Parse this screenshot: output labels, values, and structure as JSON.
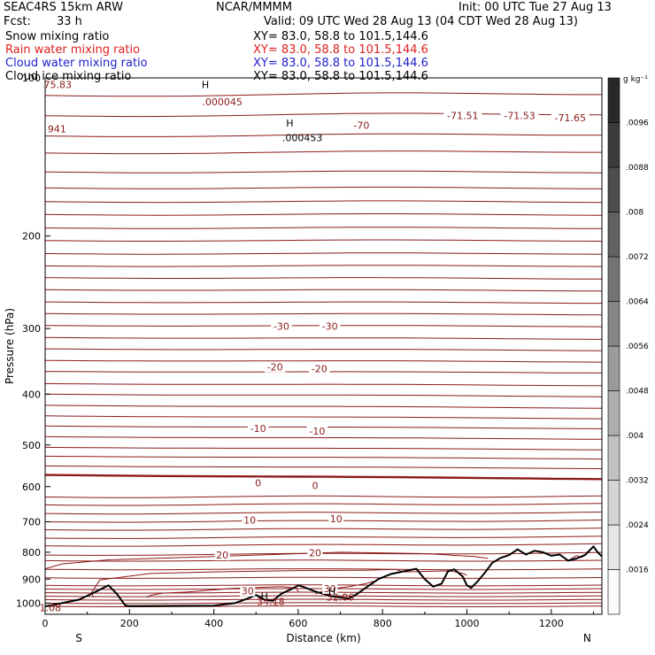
{
  "header": {
    "model": "SEAC4RS 15km ARW",
    "org": "NCAR/MMMM",
    "init": "Init: 00 UTC Tue 27 Aug 13",
    "fcst_label": "Fcst:",
    "fcst_value": "33 h",
    "valid": "Valid: 09 UTC Wed 28 Aug 13 (04 CDT Wed 28 Aug 13)"
  },
  "fields": [
    {
      "name": "Snow mixing ratio",
      "xy": "XY=  83.0, 58.8 to 101.5,144.6",
      "color": "#000000"
    },
    {
      "name": "Rain water mixing ratio",
      "xy": "XY=  83.0, 58.8 to 101.5,144.6",
      "color": "#e02020"
    },
    {
      "name": "Cloud water mixing ratio",
      "xy": "XY=  83.0, 58.8 to 101.5,144.6",
      "color": "#2020d0"
    },
    {
      "name": "Cloud ice mixing ratio",
      "xy": "XY=  83.0, 58.8 to 101.5,144.6",
      "color": "#000000"
    }
  ],
  "colors": {
    "contour": "#8b1a1a",
    "terrain": "#000000"
  },
  "chart_data": {
    "type": "line",
    "subtype": "vertical cross-section contour",
    "xlabel": "Distance (km)",
    "ylabel": "Pressure (hPa)",
    "xlim": [
      0,
      1320
    ],
    "ylim": [
      1050,
      100
    ],
    "y_scale": "log",
    "x_ticks": [
      "0",
      "200",
      "400",
      "600",
      "800",
      "1000",
      "1200"
    ],
    "y_ticks": [
      "100",
      "200",
      "300",
      "400",
      "500",
      "600",
      "700",
      "800",
      "900",
      "1000"
    ],
    "x_endpoints": {
      "left": "S",
      "right": "N"
    },
    "colorbar": {
      "unit": "g kg⁻¹",
      "ticks": [
        ".0016",
        ".0024",
        ".0032",
        ".004",
        ".0048",
        ".0056",
        ".0064",
        ".0072",
        ".008",
        ".0088",
        ".0096"
      ]
    },
    "isotherms": [
      {
        "p": 1014,
        "dp": 0
      },
      {
        "p": 1000,
        "dp": 0
      },
      {
        "p": 985,
        "dp": 0
      },
      {
        "p": 970,
        "dp": 0
      },
      {
        "p": 955,
        "dp": 0
      },
      {
        "p": 940,
        "dp": 0
      },
      {
        "p": 925,
        "dp": 0
      },
      {
        "p": 895,
        "dp": 0
      },
      {
        "p": 862,
        "dp": 0
      },
      {
        "p": 830,
        "dp": 0
      },
      {
        "p": 810,
        "dp": -8
      },
      {
        "p": 778,
        "dp": -6
      },
      {
        "p": 752,
        "dp": -5
      },
      {
        "p": 725,
        "dp": -4
      },
      {
        "p": 700,
        "dp": -4
      },
      {
        "p": 675,
        "dp": -3
      },
      {
        "p": 650,
        "dp": -3
      },
      {
        "p": 628,
        "dp": -2
      },
      {
        "p": 570,
        "dp": 10,
        "bold": true
      },
      {
        "p": 548,
        "dp": 6
      },
      {
        "p": 525,
        "dp": 6
      },
      {
        "p": 505,
        "dp": 5
      },
      {
        "p": 482,
        "dp": 5
      },
      {
        "p": 460,
        "dp": 5
      },
      {
        "p": 440,
        "dp": 5
      },
      {
        "p": 420,
        "dp": 5
      },
      {
        "p": 400,
        "dp": 4
      },
      {
        "p": 382,
        "dp": 3
      },
      {
        "p": 362,
        "dp": 2
      },
      {
        "p": 345,
        "dp": 2
      },
      {
        "p": 328,
        "dp": 2
      },
      {
        "p": 312,
        "dp": 2
      },
      {
        "p": 296,
        "dp": 1
      },
      {
        "p": 281,
        "dp": 1
      },
      {
        "p": 267,
        "dp": 1
      },
      {
        "p": 253,
        "dp": 1
      },
      {
        "p": 240,
        "dp": 1
      },
      {
        "p": 228,
        "dp": 0
      },
      {
        "p": 216,
        "dp": 0
      },
      {
        "p": 204,
        "dp": 0
      },
      {
        "p": 193,
        "dp": 0
      },
      {
        "p": 182,
        "dp": 0
      },
      {
        "p": 172,
        "dp": 0
      },
      {
        "p": 162,
        "dp": 0
      },
      {
        "p": 151,
        "dp": 0
      },
      {
        "p": 139,
        "dp": -1
      },
      {
        "p": 129,
        "dp": -1
      },
      {
        "p": 118,
        "dp": -1
      },
      {
        "p": 108,
        "dp": -1
      }
    ],
    "isotherm_labels": [
      {
        "text": "-70",
        "x": 750,
        "p": 123
      },
      {
        "text": "-30",
        "x": 560,
        "p": 297
      },
      {
        "text": "-30",
        "x": 675,
        "p": 297
      },
      {
        "text": "-20",
        "x": 545,
        "p": 355
      },
      {
        "text": "-20",
        "x": 650,
        "p": 358
      },
      {
        "text": "-10",
        "x": 505,
        "p": 465
      },
      {
        "text": "-10",
        "x": 645,
        "p": 470
      },
      {
        "text": "0",
        "x": 505,
        "p": 590
      },
      {
        "text": "0",
        "x": 640,
        "p": 597
      },
      {
        "text": "10",
        "x": 485,
        "p": 695
      },
      {
        "text": "10",
        "x": 690,
        "p": 690
      },
      {
        "text": "20",
        "x": 420,
        "p": 810
      },
      {
        "text": "20",
        "x": 640,
        "p": 802
      },
      {
        "text": "30",
        "x": 480,
        "p": 948
      },
      {
        "text": "30",
        "x": 675,
        "p": 938
      },
      {
        "text": "-71.51",
        "x": 990,
        "p": 118
      },
      {
        "text": "-71.53",
        "x": 1125,
        "p": 118
      },
      {
        "text": "-71.65",
        "x": 1245,
        "p": 119
      }
    ],
    "warm_contours": [
      {
        "level": "20",
        "points": [
          [
            0,
            860
          ],
          [
            40,
            842
          ],
          [
            150,
            827
          ],
          [
            300,
            820
          ],
          [
            500,
            810
          ],
          [
            700,
            800
          ],
          [
            900,
            805
          ],
          [
            1020,
            815
          ],
          [
            1050,
            822
          ]
        ]
      },
      {
        "level": "30",
        "points": [
          [
            115,
            975
          ],
          [
            110,
            955
          ],
          [
            130,
            903
          ],
          [
            250,
            878
          ],
          [
            400,
            872
          ],
          [
            600,
            867
          ],
          [
            760,
            866
          ],
          [
            830,
            862
          ],
          [
            850,
            872
          ],
          [
            960,
            868
          ],
          [
            990,
            878
          ],
          [
            1000,
            885
          ]
        ]
      },
      {
        "level": "30",
        "points": [
          [
            240,
            975
          ],
          [
            250,
            966
          ],
          [
            280,
            957
          ],
          [
            340,
            952
          ],
          [
            440,
            938
          ],
          [
            560,
            930
          ],
          [
            595,
            936
          ],
          [
            600,
            950
          ]
        ]
      },
      {
        "level": "30",
        "points": [
          [
            640,
            960
          ],
          [
            670,
            942
          ],
          [
            720,
            930
          ],
          [
            760,
            918
          ],
          [
            780,
            908
          ]
        ]
      },
      {
        "level": "30",
        "points": [
          [
            1245,
            825
          ],
          [
            1260,
            812
          ],
          [
            1275,
            818
          ]
        ]
      }
    ],
    "terrain": [
      [
        0,
        1014
      ],
      [
        40,
        1000
      ],
      [
        80,
        985
      ],
      [
        110,
        960
      ],
      [
        150,
        925
      ],
      [
        170,
        960
      ],
      [
        190,
        1010
      ],
      [
        200,
        1013
      ],
      [
        300,
        1012
      ],
      [
        400,
        1011
      ],
      [
        450,
        1000
      ],
      [
        480,
        980
      ],
      [
        500,
        965
      ],
      [
        520,
        985
      ],
      [
        540,
        990
      ],
      [
        560,
        960
      ],
      [
        590,
        935
      ],
      [
        600,
        925
      ],
      [
        610,
        930
      ],
      [
        640,
        950
      ],
      [
        680,
        970
      ],
      [
        720,
        980
      ],
      [
        740,
        960
      ],
      [
        760,
        935
      ],
      [
        790,
        900
      ],
      [
        820,
        880
      ],
      [
        850,
        870
      ],
      [
        880,
        860
      ],
      [
        900,
        900
      ],
      [
        920,
        930
      ],
      [
        940,
        918
      ],
      [
        955,
        870
      ],
      [
        970,
        862
      ],
      [
        990,
        890
      ],
      [
        1000,
        925
      ],
      [
        1010,
        935
      ],
      [
        1025,
        910
      ],
      [
        1045,
        870
      ],
      [
        1060,
        838
      ],
      [
        1080,
        820
      ],
      [
        1100,
        810
      ],
      [
        1120,
        790
      ],
      [
        1140,
        808
      ],
      [
        1160,
        795
      ],
      [
        1180,
        800
      ],
      [
        1200,
        812
      ],
      [
        1220,
        808
      ],
      [
        1240,
        830
      ],
      [
        1260,
        822
      ],
      [
        1280,
        810
      ],
      [
        1300,
        780
      ],
      [
        1310,
        800
      ],
      [
        1320,
        815
      ]
    ],
    "annotations": [
      {
        "text": "H",
        "x": 380,
        "p": 103
      },
      {
        "text": ".000045",
        "x": 420,
        "p": 111
      },
      {
        "text": "H",
        "x": 580,
        "p": 122
      },
      {
        "text": ".000453",
        "x": 610,
        "p": 130
      },
      {
        "text": "75.83",
        "x": 30,
        "p": 103
      },
      {
        "text": "941",
        "x": 28,
        "p": 125
      },
      {
        "text": "H",
        "x": 520,
        "p": 970
      },
      {
        "text": "34.18",
        "x": 535,
        "p": 993
      },
      {
        "text": "H",
        "x": 680,
        "p": 950
      },
      {
        "text": "32.06",
        "x": 700,
        "p": 973
      },
      {
        "text": "1.08",
        "x": 12,
        "p": 1019
      }
    ]
  }
}
